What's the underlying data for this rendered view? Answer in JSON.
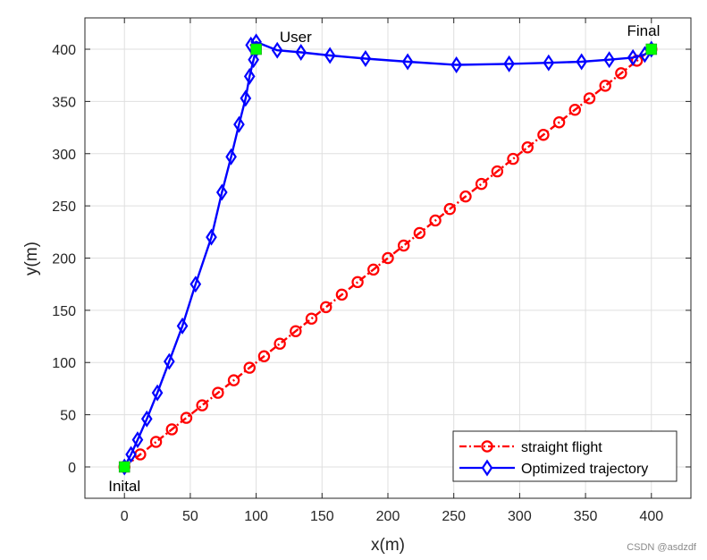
{
  "chart_data": {
    "type": "line",
    "title": "",
    "xlabel": "x(m)",
    "ylabel": "y(m)",
    "xlim": [
      -30,
      430
    ],
    "ylim": [
      -30,
      430
    ],
    "xticks": [
      0,
      50,
      100,
      150,
      200,
      250,
      300,
      350,
      400
    ],
    "yticks": [
      0,
      50,
      100,
      150,
      200,
      250,
      300,
      350,
      400
    ],
    "grid": true,
    "legend_position": "bottom-right",
    "series": [
      {
        "name": "straight flight",
        "color": "#ff0000",
        "line_style": "dash-dot",
        "marker": "circle",
        "x": [
          0,
          12,
          24,
          36,
          47,
          59,
          71,
          83,
          95,
          106,
          118,
          130,
          142,
          153,
          165,
          177,
          189,
          200,
          212,
          224,
          236,
          247,
          259,
          271,
          283,
          295,
          306,
          318,
          330,
          342,
          353,
          365,
          377,
          389,
          400
        ],
        "y": [
          0,
          12,
          24,
          36,
          47,
          59,
          71,
          83,
          95,
          106,
          118,
          130,
          142,
          153,
          165,
          177,
          189,
          200,
          212,
          224,
          236,
          247,
          259,
          271,
          283,
          295,
          306,
          318,
          330,
          342,
          353,
          365,
          377,
          389,
          400
        ]
      },
      {
        "name": "Optimized trajectory",
        "color": "#0000ff",
        "line_style": "solid",
        "marker": "diamond",
        "x": [
          0,
          5,
          10,
          17,
          25,
          34,
          44,
          54,
          66,
          74,
          81,
          87,
          92,
          95,
          98,
          100,
          96,
          100,
          116,
          134,
          156,
          183,
          215,
          252,
          292,
          322,
          347,
          368,
          386,
          395,
          400
        ],
        "y": [
          0,
          12,
          26,
          46,
          71,
          101,
          135,
          175,
          220,
          263,
          297,
          328,
          353,
          374,
          390,
          400,
          404,
          407,
          399,
          397,
          394,
          391,
          388,
          385,
          386,
          387,
          388,
          390,
          392,
          395,
          400
        ]
      }
    ],
    "special_points": {
      "color": "#00ff00",
      "points": [
        {
          "x": 0,
          "y": 0
        },
        {
          "x": 100,
          "y": 400
        },
        {
          "x": 400,
          "y": 400
        }
      ]
    },
    "annotations": [
      {
        "text": "Inital",
        "x": 0,
        "y": -18
      },
      {
        "text": "User",
        "x": 130,
        "y": 412
      },
      {
        "text": "Final",
        "x": 394,
        "y": 418
      }
    ]
  },
  "watermark": "CSDN @asdzdf"
}
